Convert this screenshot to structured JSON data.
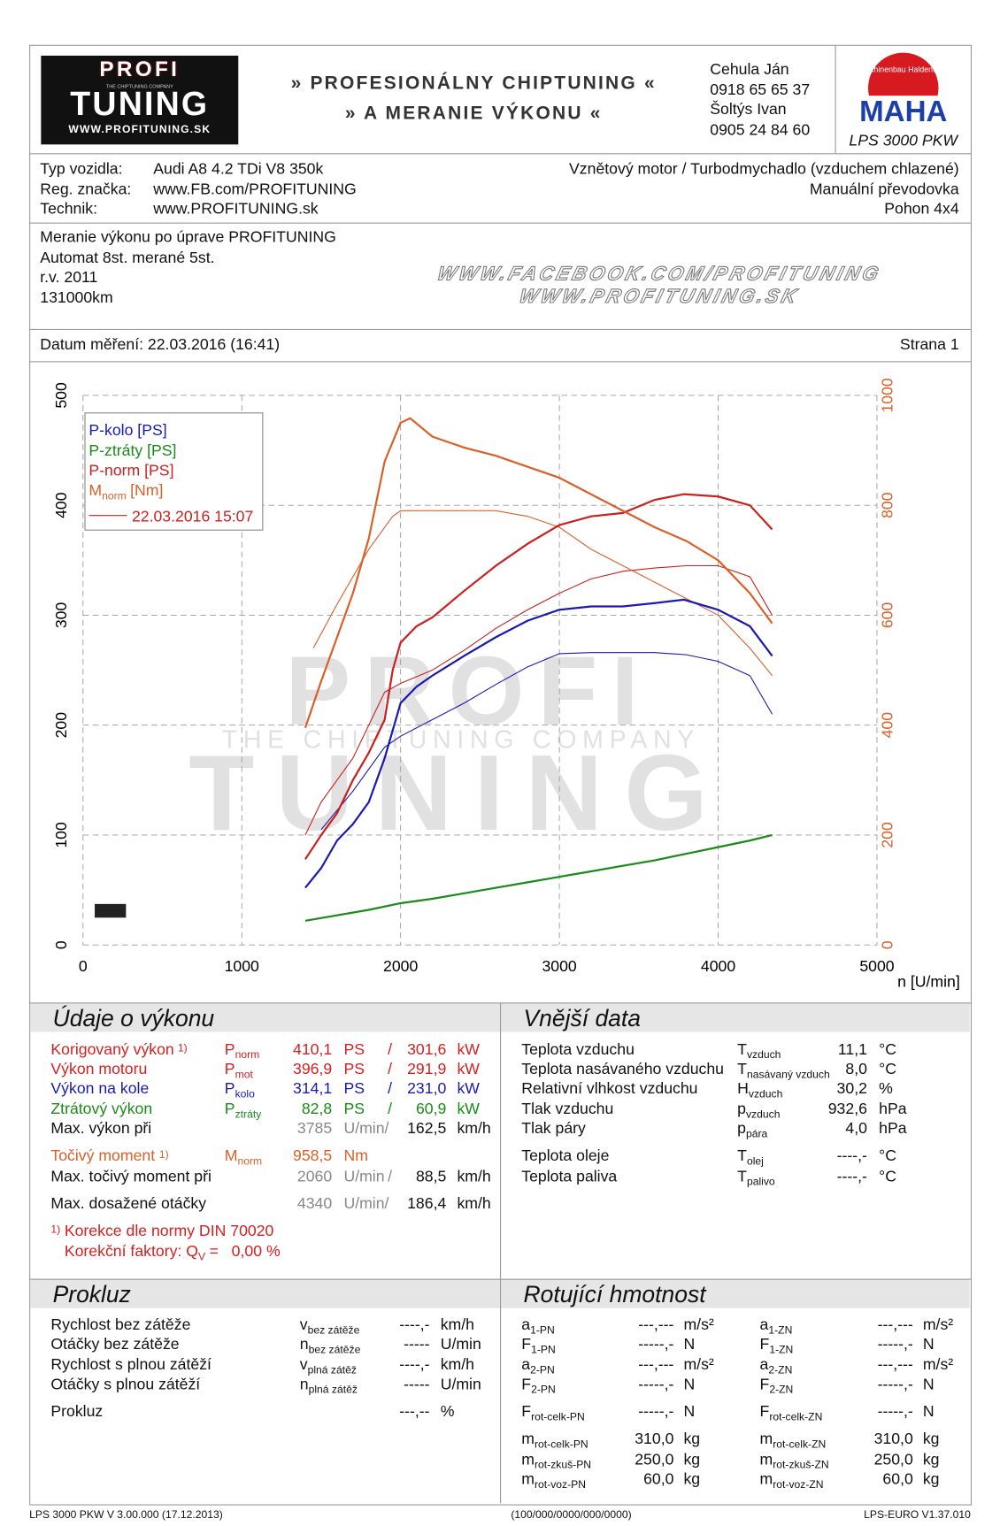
{
  "header": {
    "logo_top": "PROFI",
    "logo_tag": "THE CHIPTUNING COMPANY",
    "logo_bottom": "TUNING",
    "logo_url": "WWW.PROFITUNING.SK",
    "slogan_1": "» PROFESIONÁLNY CHIPTUNING «",
    "slogan_2": "» A MERANIE VÝKONU «",
    "contacts": [
      "Cehula Ján",
      "0918 65 65 37",
      "Šoltýs Ivan",
      "0905 24 84 60"
    ],
    "maha_ring": "Maschinenbau Haldenwang",
    "maha_brand": "MAHA",
    "maha_model": "LPS 3000 PKW"
  },
  "vehicle": {
    "rows": [
      [
        "Typ vozidla:",
        "Audi A8 4.2 TDi V8 350k"
      ],
      [
        "Reg. značka:",
        "www.FB.com/PROFITUNING"
      ],
      [
        "Technik:",
        "www.PROFITUNING.sk"
      ]
    ],
    "right": [
      "Vznětový motor / Turbodmychadlo (vzduchem chlazené)",
      "Manuální převodovka",
      "Pohon 4x4"
    ]
  },
  "notes": {
    "lines": [
      "Meranie výkonu po úprave PROFITUNING",
      "Automat 8st. merané 5st.",
      "r.v. 2011",
      "131000km"
    ],
    "web": [
      "WWW.FACEBOOK.COM/PROFITUNING",
      "WWW.PROFITUNING.SK"
    ]
  },
  "date": {
    "text": "Datum měření: 22.03.2016 (16:41)",
    "page": "Strana 1"
  },
  "chart_data": {
    "type": "line",
    "xlabel": "n [U/min]",
    "xlim": [
      0,
      5000
    ],
    "xticks": [
      0,
      1000,
      2000,
      3000,
      4000,
      5000
    ],
    "ylim": [
      0,
      500
    ],
    "yticks": [
      0,
      100,
      200,
      300,
      400,
      500
    ],
    "y2lim": [
      0,
      1000
    ],
    "y2ticks": [
      0,
      200,
      400,
      600,
      800,
      1000
    ],
    "y2color": "#d9602a",
    "grid": true,
    "watermark": {
      "top": "PROFI",
      "middle": "THE CHIPTUNING COMPANY",
      "bottom": "TUNING"
    },
    "series": [
      {
        "name": "P-kolo [PS]",
        "color": "#1a1ab0",
        "x": [
          1400,
          1500,
          1600,
          1700,
          1800,
          1900,
          2000,
          2100,
          2200,
          2400,
          2600,
          2800,
          3000,
          3200,
          3400,
          3600,
          3785,
          4000,
          4200,
          4340
        ],
        "values": [
          52,
          70,
          95,
          110,
          130,
          170,
          220,
          235,
          245,
          263,
          280,
          295,
          305,
          308,
          308,
          311,
          314.1,
          305,
          290,
          263
        ]
      },
      {
        "name": "P-ztráty [PS]",
        "color": "#1a8a1a",
        "x": [
          1400,
          1600,
          1800,
          2000,
          2200,
          2400,
          2600,
          2800,
          3000,
          3200,
          3400,
          3600,
          3800,
          4000,
          4200,
          4340
        ],
        "values": [
          22,
          27,
          32,
          38,
          42,
          47,
          52,
          57,
          62,
          67,
          72,
          77,
          83,
          89,
          95,
          100
        ]
      },
      {
        "name": "P-norm [PS]",
        "color": "#cc1f1f",
        "x": [
          1400,
          1500,
          1600,
          1700,
          1800,
          1900,
          1950,
          2000,
          2100,
          2200,
          2400,
          2600,
          2800,
          3000,
          3200,
          3400,
          3600,
          3785,
          4000,
          4200,
          4340
        ],
        "values": [
          78,
          100,
          120,
          150,
          175,
          205,
          250,
          275,
          290,
          298,
          322,
          345,
          365,
          382,
          390,
          393,
          405,
          410.1,
          408,
          400,
          378
        ]
      },
      {
        "name": "M",
        "name_sub": "norm",
        "name_unit": "[Nm]",
        "color": "#d9602a",
        "axis": "y2",
        "x": [
          1400,
          1500,
          1600,
          1700,
          1800,
          1900,
          2000,
          2060,
          2200,
          2400,
          2600,
          2800,
          3000,
          3200,
          3400,
          3600,
          3800,
          4000,
          4200,
          4340
        ],
        "values": [
          395,
          480,
          560,
          640,
          740,
          880,
          950,
          958.5,
          925,
          905,
          890,
          870,
          850,
          820,
          790,
          760,
          735,
          700,
          640,
          585
        ]
      }
    ],
    "comparison": {
      "label": "22.03.2016 15:07",
      "color": "#cc1f1f",
      "series": [
        {
          "color": "#1a1ab0",
          "x": [
            1500,
            1700,
            1900,
            2000,
            2200,
            2400,
            2600,
            2800,
            3000,
            3200,
            3400,
            3600,
            3800,
            4000,
            4200,
            4340
          ],
          "values": [
            105,
            140,
            180,
            190,
            205,
            220,
            237,
            253,
            265,
            266,
            266,
            266,
            264,
            258,
            245,
            210
          ]
        },
        {
          "color": "#cc1f1f",
          "x": [
            1400,
            1500,
            1700,
            1900,
            2000,
            2200,
            2400,
            2600,
            2800,
            3000,
            3200,
            3400,
            3600,
            3800,
            4000,
            4200,
            4340
          ],
          "values": [
            100,
            130,
            170,
            230,
            238,
            250,
            268,
            288,
            305,
            320,
            333,
            340,
            343,
            345,
            345,
            335,
            300
          ]
        },
        {
          "color": "#d9602a",
          "axis": "y2",
          "x": [
            1450,
            1600,
            1800,
            1950,
            2000,
            2200,
            2400,
            2600,
            2800,
            3000,
            3200,
            3400,
            3600,
            3800,
            4000,
            4200,
            4340
          ],
          "values": [
            540,
            620,
            720,
            780,
            790,
            790,
            790,
            790,
            780,
            760,
            720,
            690,
            660,
            630,
            600,
            540,
            490
          ]
        }
      ]
    }
  },
  "performance": {
    "title": "Údaje o výkonu",
    "rows": [
      {
        "label": "Korigovaný výkon",
        "note": "1)",
        "sym": "P",
        "sub": "norm",
        "v1": "410,1",
        "u1": "PS",
        "sep": "/",
        "v2": "301,6",
        "u2": "kW",
        "color": "#d42020"
      },
      {
        "label": "Výkon motoru",
        "sym": "P",
        "sub": "mot",
        "v1": "396,9",
        "u1": "PS",
        "sep": "/",
        "v2": "291,9",
        "u2": "kW",
        "color": "#d42020"
      },
      {
        "label": "Výkon na kole",
        "sym": "P",
        "sub": "kolo",
        "v1": "314,1",
        "u1": "PS",
        "sep": "/",
        "v2": "231,0",
        "u2": "kW",
        "color": "#1a1ab0"
      },
      {
        "label": "Ztrátový výkon",
        "sym": "P",
        "sub": "ztráty",
        "v1": "82,8",
        "u1": "PS",
        "sep": "/",
        "v2": "60,9",
        "u2": "kW",
        "color": "#1a8a1a"
      },
      {
        "label": "Max. výkon při",
        "v1": "3785",
        "u1": "U/min/",
        "v2": "162,5",
        "u2": "km/h",
        "color": "#111111"
      },
      {
        "label": "Točivý moment",
        "note": "1)",
        "sym": "M",
        "sub": "norm",
        "v1": "958,5",
        "u1": "Nm",
        "color": "#d9602a"
      },
      {
        "label": "Max. točivý moment při",
        "v1": "2060",
        "u1": "U/min",
        "sep": "/",
        "v2": "88,5",
        "u2": "km/h",
        "color": "#111111"
      },
      {
        "label": "Max. dosažené otáčky",
        "v1": "4340",
        "u1": "U/min/",
        "v2": "186,4",
        "u2": "km/h",
        "color": "#111111"
      }
    ],
    "foot_note": "1)",
    "foot_1": "Korekce dle normy DIN 70020",
    "foot_2": "Korekční faktory: Q",
    "foot_2_sub": "V",
    "foot_2_end": " =   0,00 %"
  },
  "external": {
    "title": "Vnější data",
    "rows": [
      {
        "label": "Teplota vzduchu",
        "sym": "T",
        "sub": "vzduch",
        "value": "11,1",
        "unit": "°C"
      },
      {
        "label": "Teplota nasávaného vzduchu",
        "sym": "T",
        "sub": "nasávaný vzduch",
        "value": "8,0",
        "unit": "°C"
      },
      {
        "label": "Relativní vlhkost vzduchu",
        "sym": "H",
        "sub": "vzduch",
        "value": "30,2",
        "unit": "%"
      },
      {
        "label": "Tlak vzduchu",
        "sym": "p",
        "sub": "vzduch",
        "value": "932,6",
        "unit": "hPa"
      },
      {
        "label": "Tlak páry",
        "sym": "p",
        "sub": "pára",
        "value": "4,0",
        "unit": "hPa"
      },
      {
        "label": "Teplota oleje",
        "sym": "T",
        "sub": "olej",
        "value": "----,-",
        "unit": "°C"
      },
      {
        "label": "Teplota paliva",
        "sym": "T",
        "sub": "palivo",
        "value": "----,-",
        "unit": "°C"
      }
    ]
  },
  "slip": {
    "title": "Prokluz",
    "rows": [
      {
        "label": "Rychlost bez zátěže",
        "sym": "v",
        "sub": "bez zátěže",
        "value": "----,-",
        "unit": "km/h"
      },
      {
        "label": "Otáčky bez zátěže",
        "sym": "n",
        "sub": "bez zátěže",
        "value": "-----",
        "unit": "U/min"
      },
      {
        "label": "Rychlost s plnou zátěží",
        "sym": "v",
        "sub": "plná zátěž",
        "value": "----,-",
        "unit": "km/h"
      },
      {
        "label": "Otáčky s plnou zátěží",
        "sym": "n",
        "sub": "plná zátěž",
        "value": "-----",
        "unit": "U/min"
      },
      {
        "label": "Prokluz",
        "value": "---,--",
        "unit": "%"
      }
    ]
  },
  "rotating": {
    "title": "Rotující hmotnost",
    "left": [
      {
        "sym": "a",
        "sub": "1-PN",
        "value": "---,---",
        "unit": "m/s²"
      },
      {
        "sym": "F",
        "sub": "1-PN",
        "value": "-----,-",
        "unit": "N"
      },
      {
        "sym": "a",
        "sub": "2-PN",
        "value": "---,---",
        "unit": "m/s²"
      },
      {
        "sym": "F",
        "sub": "2-PN",
        "value": "-----,-",
        "unit": "N"
      },
      {
        "sym": "F",
        "sub": "rot-celk-PN",
        "value": "-----,-",
        "unit": "N"
      },
      {
        "sym": "m",
        "sub": "rot-celk-PN",
        "value": "310,0",
        "unit": "kg"
      },
      {
        "sym": "m",
        "sub": "rot-zkuš-PN",
        "value": "250,0",
        "unit": "kg"
      },
      {
        "sym": "m",
        "sub": "rot-voz-PN",
        "value": "60,0",
        "unit": "kg"
      }
    ],
    "right": [
      {
        "sym": "a",
        "sub": "1-ZN",
        "value": "---,---",
        "unit": "m/s²"
      },
      {
        "sym": "F",
        "sub": "1-ZN",
        "value": "-----,-",
        "unit": "N"
      },
      {
        "sym": "a",
        "sub": "2-ZN",
        "value": "---,---",
        "unit": "m/s²"
      },
      {
        "sym": "F",
        "sub": "2-ZN",
        "value": "-----,-",
        "unit": "N"
      },
      {
        "sym": "F",
        "sub": "rot-celk-ZN",
        "value": "-----,-",
        "unit": "N"
      },
      {
        "sym": "m",
        "sub": "rot-celk-ZN",
        "value": "310,0",
        "unit": "kg"
      },
      {
        "sym": "m",
        "sub": "rot-zkuš-ZN",
        "value": "250,0",
        "unit": "kg"
      },
      {
        "sym": "m",
        "sub": "rot-voz-ZN",
        "value": "60,0",
        "unit": "kg"
      }
    ]
  },
  "footer": {
    "left": "LPS 3000 PKW V 3.00.000 (17.12.2013)",
    "center": "(100/000/0000/000/0000)",
    "right": "LPS-EURO V1.37.010"
  }
}
